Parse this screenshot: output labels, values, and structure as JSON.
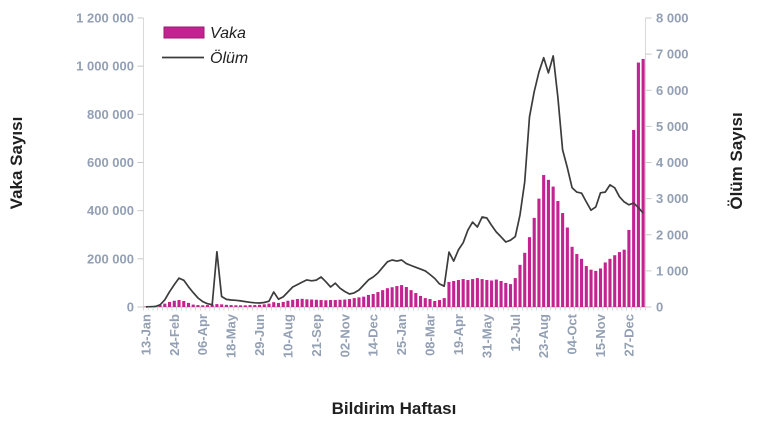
{
  "chart_data": {
    "type": "bar-line-combo",
    "xlabel": "Bildirim Haftası",
    "x_tick_labels": [
      "13-Jan",
      "24-Feb",
      "06-Apr",
      "18-May",
      "29-Jun",
      "10-Aug",
      "21-Sep",
      "02-Nov",
      "14-Dec",
      "25-Jan",
      "08-Mar",
      "19-Apr",
      "31-May",
      "12-Jul",
      "23-Aug",
      "04-Oct",
      "15-Nov",
      "27-Dec"
    ],
    "x_label_every": 6,
    "left_axis": {
      "title": "Vaka Sayısı",
      "min": 0,
      "max": 1200000,
      "tick_labels": [
        "0",
        "200 000",
        "400 000",
        "600 000",
        "800 000",
        "1 000 000",
        "1 200 000"
      ]
    },
    "right_axis": {
      "title": "Ölüm Sayısı",
      "min": 0,
      "max": 8000,
      "tick_labels": [
        "0",
        "1 000",
        "2 000",
        "3 000",
        "4 000",
        "5 000",
        "6 000",
        "7 000",
        "8 000"
      ]
    },
    "legend": [
      {
        "label": "Vaka",
        "swatch": "bar",
        "color": "#C32291"
      },
      {
        "label": "Ölüm",
        "swatch": "line",
        "color": "#3C3C3C"
      }
    ],
    "series": [
      {
        "name": "Vaka",
        "type": "bar",
        "axis": "left",
        "color": "#C32291",
        "values": [
          2000,
          3000,
          5000,
          8000,
          14000,
          21000,
          26000,
          29000,
          25000,
          17000,
          10000,
          8000,
          7000,
          8000,
          10000,
          12000,
          11000,
          9000,
          8000,
          7000,
          7000,
          7000,
          8000,
          8000,
          9000,
          11000,
          14000,
          20000,
          17000,
          21000,
          26000,
          30000,
          33000,
          34000,
          32000,
          31000,
          30000,
          29000,
          28000,
          29000,
          29000,
          30000,
          31000,
          33000,
          37000,
          40000,
          43000,
          50000,
          54000,
          62000,
          70000,
          78000,
          82000,
          87000,
          91000,
          83000,
          70000,
          58000,
          46000,
          37000,
          33000,
          25000,
          29000,
          37000,
          104000,
          108000,
          112000,
          116000,
          112000,
          116000,
          120000,
          116000,
          112000,
          110000,
          114000,
          108000,
          100000,
          95000,
          120000,
          175000,
          225000,
          290000,
          370000,
          450000,
          548000,
          528000,
          500000,
          440000,
          390000,
          330000,
          250000,
          220000,
          200000,
          170000,
          155000,
          150000,
          160000,
          185000,
          200000,
          215000,
          228000,
          238000,
          320000,
          735000,
          1015000,
          1030000
        ]
      },
      {
        "name": "Ölüm",
        "type": "line",
        "axis": "right",
        "color": "#3C3C3C",
        "values": [
          4,
          8,
          15,
          60,
          200,
          420,
          620,
          800,
          740,
          560,
          400,
          250,
          150,
          90,
          65,
          1530,
          290,
          210,
          195,
          185,
          170,
          150,
          130,
          115,
          110,
          125,
          160,
          415,
          215,
          280,
          415,
          555,
          620,
          690,
          750,
          725,
          745,
          830,
          700,
          555,
          660,
          520,
          430,
          360,
          390,
          470,
          610,
          750,
          830,
          940,
          1100,
          1250,
          1300,
          1270,
          1300,
          1200,
          1150,
          1100,
          1050,
          1000,
          900,
          790,
          640,
          575,
          1520,
          1270,
          1580,
          1780,
          2130,
          2350,
          2215,
          2490,
          2465,
          2260,
          2075,
          1940,
          1800,
          1850,
          1950,
          2550,
          3460,
          5265,
          5960,
          6500,
          6900,
          6480,
          6950,
          5800,
          4350,
          3850,
          3300,
          3180,
          3150,
          2910,
          2680,
          2770,
          3160,
          3180,
          3380,
          3300,
          3050,
          2910,
          2830,
          2880,
          2750,
          2600
        ]
      }
    ],
    "grid": "off",
    "legend_position": "top-left-inside"
  }
}
